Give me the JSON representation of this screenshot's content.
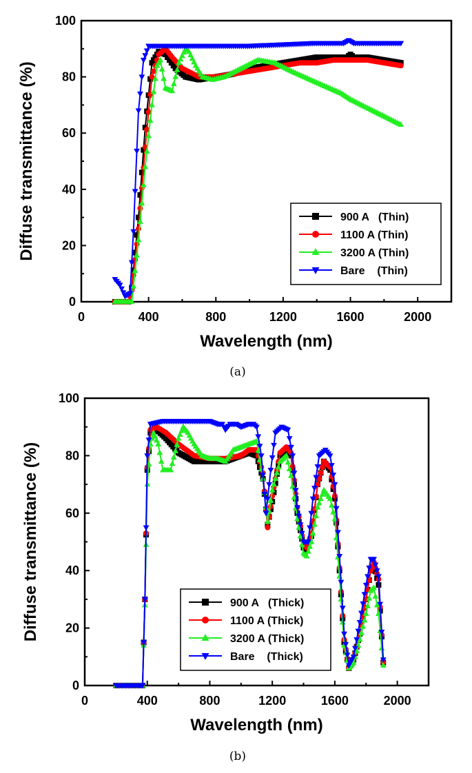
{
  "colors": {
    "900 A": "#000000",
    "1100 A": "#ff0000",
    "3200 A": "#22ee22",
    "Bare": "#0000ff"
  },
  "chart_data": [
    {
      "type": "line",
      "caption": "(a)",
      "xlabel": "Wavelength (nm)",
      "ylabel": "Diffuse transmittance (%)",
      "xlim": [
        0,
        2200
      ],
      "ylim": [
        0,
        100
      ],
      "xticks": [
        0,
        400,
        800,
        1200,
        1600,
        2000
      ],
      "yticks": [
        0,
        20,
        40,
        60,
        80,
        100
      ],
      "legend_position": "bottom-right",
      "series": [
        {
          "name": "900 A   (Thin)",
          "color": "#000000",
          "marker": "square",
          "x": [
            200,
            280,
            300,
            340,
            380,
            420,
            460,
            500,
            560,
            620,
            700,
            800,
            900,
            1000,
            1100,
            1200,
            1300,
            1400,
            1500,
            1580,
            1600,
            1620,
            1700,
            1800,
            1900
          ],
          "y": [
            0,
            0,
            5,
            30,
            62,
            85,
            89,
            88,
            83,
            80,
            79,
            80,
            81,
            83,
            84,
            85,
            86,
            87,
            87,
            87,
            88,
            87,
            87,
            86,
            85
          ]
        },
        {
          "name": "1100 A (Thin)",
          "color": "#ff0000",
          "marker": "circle",
          "x": [
            200,
            280,
            300,
            340,
            380,
            420,
            460,
            500,
            540,
            600,
            700,
            800,
            900,
            1000,
            1100,
            1200,
            1300,
            1400,
            1500,
            1600,
            1700,
            1800,
            1900
          ],
          "y": [
            0,
            0,
            4,
            26,
            55,
            80,
            88,
            90,
            87,
            83,
            80,
            80,
            81,
            82,
            83,
            84,
            85,
            85,
            86,
            86,
            86,
            85,
            84
          ]
        },
        {
          "name": "3200 A (Thin)",
          "color": "#22ee22",
          "marker": "triangle-up",
          "x": [
            200,
            300,
            340,
            380,
            420,
            450,
            470,
            500,
            540,
            580,
            620,
            640,
            680,
            720,
            780,
            850,
            950,
            1050,
            1150,
            1250,
            1400,
            1550,
            1600,
            1700,
            1800,
            1900
          ],
          "y": [
            0,
            0,
            22,
            48,
            70,
            84,
            86,
            76,
            75,
            85,
            90,
            89,
            84,
            80,
            79,
            80,
            83,
            86,
            85,
            82,
            78,
            74,
            72,
            69,
            66,
            63
          ]
        },
        {
          "name": "Bare    (Thin)",
          "color": "#0000ff",
          "marker": "triangle-down",
          "x": [
            200,
            230,
            260,
            290,
            310,
            340,
            370,
            400,
            500,
            600,
            800,
            1000,
            1200,
            1400,
            1560,
            1590,
            1620,
            1700,
            1800,
            1900
          ],
          "y": [
            8,
            6,
            2,
            3,
            25,
            68,
            86,
            91,
            91,
            91,
            91,
            91,
            91.5,
            92,
            92,
            93,
            92,
            92,
            92,
            92
          ]
        }
      ]
    },
    {
      "type": "line",
      "caption": "(b)",
      "xlabel": "Wavelength (nm)",
      "ylabel": "Diffuse transmittance (%)",
      "xlim": [
        0,
        2200
      ],
      "ylim": [
        0,
        100
      ],
      "xticks": [
        0,
        400,
        800,
        1200,
        1600,
        2000
      ],
      "yticks": [
        0,
        20,
        40,
        60,
        80,
        100
      ],
      "legend_position": "bottom-center",
      "series": [
        {
          "name": "900 A   (Thick)",
          "color": "#000000",
          "marker": "square",
          "x": [
            200,
            370,
            385,
            400,
            420,
            460,
            520,
            600,
            700,
            800,
            900,
            1000,
            1050,
            1100,
            1140,
            1170,
            1200,
            1250,
            1290,
            1320,
            1360,
            1400,
            1420,
            1450,
            1490,
            1530,
            1570,
            1600,
            1630,
            1660,
            1690,
            1720,
            1760,
            1800,
            1830,
            1850,
            1880,
            1910
          ],
          "y": [
            0,
            0,
            30,
            75,
            88,
            89,
            86,
            81,
            78,
            78,
            78,
            80,
            81,
            80,
            72,
            56,
            64,
            80,
            82,
            80,
            60,
            48,
            47,
            52,
            70,
            78,
            75,
            65,
            40,
            15,
            6,
            9,
            18,
            30,
            40,
            42,
            35,
            8
          ]
        },
        {
          "name": "1100 A (Thick)",
          "color": "#ff0000",
          "marker": "circle",
          "x": [
            200,
            370,
            385,
            400,
            420,
            460,
            520,
            600,
            700,
            800,
            900,
            1000,
            1050,
            1100,
            1140,
            1170,
            1200,
            1250,
            1290,
            1320,
            1360,
            1400,
            1420,
            1450,
            1490,
            1530,
            1570,
            1600,
            1630,
            1660,
            1690,
            1720,
            1760,
            1800,
            1830,
            1850,
            1880,
            1910
          ],
          "y": [
            0,
            0,
            30,
            76,
            89,
            90,
            88,
            84,
            80,
            79,
            79,
            80,
            82,
            82,
            74,
            55,
            66,
            81,
            83,
            81,
            62,
            49,
            48,
            53,
            70,
            78,
            76,
            66,
            41,
            16,
            6,
            9,
            18,
            30,
            40,
            43,
            37,
            8
          ]
        },
        {
          "name": "3200 A (Thick)",
          "color": "#22ee22",
          "marker": "triangle-up",
          "x": [
            200,
            370,
            385,
            400,
            420,
            440,
            470,
            500,
            550,
            600,
            630,
            660,
            700,
            750,
            800,
            850,
            900,
            950,
            1000,
            1050,
            1100,
            1140,
            1170,
            1200,
            1250,
            1290,
            1320,
            1360,
            1400,
            1420,
            1450,
            1490,
            1530,
            1570,
            1600,
            1630,
            1660,
            1690,
            1720,
            1760,
            1800,
            1830,
            1850,
            1880,
            1910
          ],
          "y": [
            0,
            0,
            28,
            70,
            84,
            88,
            84,
            75,
            75,
            86,
            90,
            88,
            84,
            80,
            79,
            79,
            78,
            82,
            83,
            84,
            85,
            72,
            57,
            68,
            78,
            80,
            73,
            58,
            46,
            45,
            50,
            62,
            68,
            65,
            58,
            38,
            14,
            6,
            8,
            16,
            25,
            33,
            34,
            25,
            7
          ]
        },
        {
          "name": "Bare    (Thick)",
          "color": "#0000ff",
          "marker": "triangle-down",
          "x": [
            200,
            370,
            385,
            400,
            420,
            500,
            600,
            700,
            800,
            850,
            880,
            900,
            930,
            970,
            1000,
            1050,
            1080,
            1100,
            1130,
            1160,
            1190,
            1220,
            1260,
            1300,
            1330,
            1360,
            1400,
            1430,
            1460,
            1500,
            1540,
            1570,
            1600,
            1630,
            1660,
            1690,
            1720,
            1760,
            1800,
            1830,
            1850,
            1880,
            1910
          ],
          "y": [
            0,
            0,
            30,
            80,
            91,
            92,
            92,
            92,
            92,
            91,
            91,
            89,
            91,
            91,
            90,
            91,
            91,
            90,
            80,
            60,
            75,
            88,
            90,
            89,
            80,
            62,
            50,
            50,
            65,
            80,
            82,
            80,
            70,
            45,
            18,
            7,
            10,
            22,
            35,
            44,
            44,
            38,
            9
          ]
        }
      ]
    }
  ]
}
